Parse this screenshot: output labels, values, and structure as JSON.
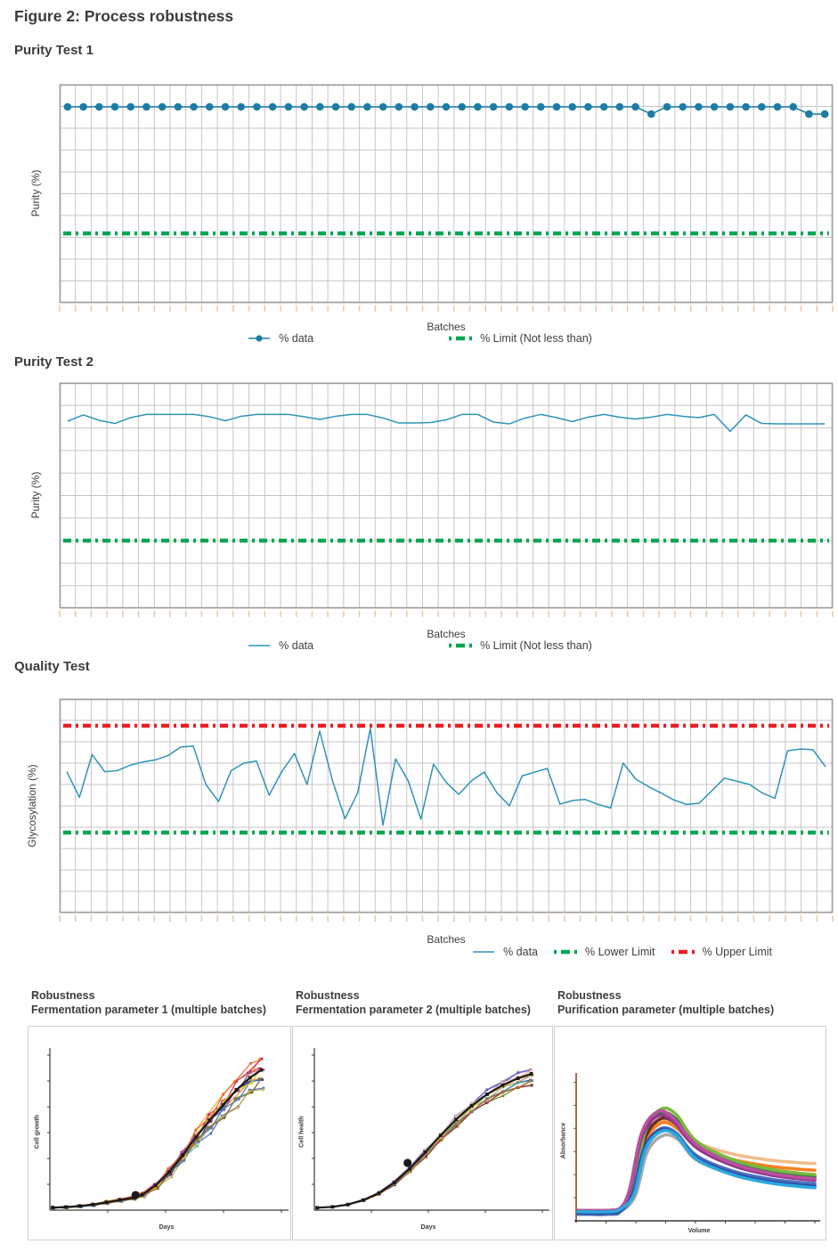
{
  "figure_title": "Figure 2: Process robustness",
  "palette": {
    "data_dot_teal": "#1b7da4",
    "data_line_teal": "#2e93b9",
    "limit_green": "#00a651",
    "limit_red": "#ec1c24",
    "grid_gray": "#c6c6c6",
    "plot_border_gray": "#9a9a9a",
    "axis_tick_peach": "#e9c9a6",
    "heading_gray": "#3c3c3c",
    "panel_border_gray": "#cfcfcf",
    "panel_axis_dark": "#3a3a3a",
    "chrom_axis_brown": "#8c4a1f"
  },
  "chart_data": [
    {
      "id": "purity-test-1",
      "type": "line",
      "title": "Purity Test 1",
      "ylabel": "Purity (%)",
      "xlabel": "Batches",
      "axis_numbers_shown": false,
      "grid": {
        "cols": 49,
        "rows": 10,
        "grid_on": true
      },
      "marker": true,
      "data_color": "#1b7da4",
      "values_rel": [
        0.898,
        0.898,
        0.898,
        0.898,
        0.898,
        0.898,
        0.898,
        0.898,
        0.898,
        0.898,
        0.898,
        0.898,
        0.898,
        0.898,
        0.898,
        0.898,
        0.898,
        0.898,
        0.898,
        0.898,
        0.898,
        0.898,
        0.898,
        0.898,
        0.898,
        0.898,
        0.898,
        0.898,
        0.898,
        0.898,
        0.898,
        0.898,
        0.898,
        0.898,
        0.898,
        0.898,
        0.898,
        0.865,
        0.898,
        0.898,
        0.898,
        0.898,
        0.898,
        0.898,
        0.898,
        0.898,
        0.898,
        0.865,
        0.865
      ],
      "limits": [
        {
          "label": "% Limit (Not less than)",
          "value_rel": 0.318,
          "color": "#00a651"
        }
      ],
      "legend": [
        {
          "label": "% data",
          "marker": "dot-line",
          "color": "#1b7da4"
        },
        {
          "label": "% Limit (Not less than)",
          "marker": "dash",
          "color": "#00a651"
        }
      ],
      "note": "y values are relative plot-height fractions; no numeric tick labels are shown in the figure"
    },
    {
      "id": "purity-test-2",
      "type": "line",
      "title": "Purity Test 2",
      "ylabel": "Purity (%)",
      "xlabel": "Batches",
      "axis_numbers_shown": false,
      "grid": {
        "cols": 49,
        "rows": 10,
        "grid_on": true
      },
      "marker": false,
      "data_color": "#2e93b9",
      "values_rel": [
        0.83,
        0.858,
        0.834,
        0.82,
        0.846,
        0.86,
        0.86,
        0.86,
        0.86,
        0.85,
        0.832,
        0.852,
        0.86,
        0.86,
        0.86,
        0.85,
        0.838,
        0.852,
        0.86,
        0.86,
        0.844,
        0.822,
        0.822,
        0.824,
        0.836,
        0.86,
        0.86,
        0.826,
        0.818,
        0.844,
        0.86,
        0.846,
        0.828,
        0.848,
        0.86,
        0.848,
        0.84,
        0.848,
        0.86,
        0.852,
        0.846,
        0.86,
        0.785,
        0.858,
        0.82,
        0.818,
        0.818,
        0.818,
        0.818
      ],
      "limits": [
        {
          "label": "% Limit (Not less than)",
          "value_rel": 0.3,
          "color": "#00a651"
        }
      ],
      "legend": [
        {
          "label": "% data",
          "marker": "line",
          "color": "#2e93b9"
        },
        {
          "label": "% Limit (Not less than)",
          "marker": "dash",
          "color": "#00a651"
        }
      ]
    },
    {
      "id": "quality-test",
      "type": "line",
      "title": "Quality Test",
      "ylabel": "Glycosylation (%)",
      "xlabel": "Batches",
      "axis_numbers_shown": false,
      "grid": {
        "cols": 49,
        "rows": 10,
        "grid_on": true
      },
      "marker": false,
      "data_color": "#2e93b9",
      "values_rel": [
        0.66,
        0.54,
        0.74,
        0.66,
        0.665,
        0.69,
        0.705,
        0.715,
        0.735,
        0.775,
        0.78,
        0.6,
        0.52,
        0.665,
        0.7,
        0.71,
        0.55,
        0.66,
        0.745,
        0.6,
        0.85,
        0.62,
        0.44,
        0.56,
        0.862,
        0.41,
        0.72,
        0.617,
        0.438,
        0.695,
        0.61,
        0.554,
        0.617,
        0.658,
        0.563,
        0.5,
        0.64,
        0.658,
        0.675,
        0.508,
        0.525,
        0.53,
        0.507,
        0.49,
        0.7,
        0.625,
        0.59,
        0.56,
        0.528,
        0.507,
        0.512,
        0.57,
        0.63,
        0.615,
        0.6,
        0.56,
        0.535,
        0.758,
        0.766,
        0.763,
        0.683
      ],
      "limits": [
        {
          "label": "% Upper Limit",
          "value_rel": 0.875,
          "color": "#ec1c24"
        },
        {
          "label": "% Lower Limit",
          "value_rel": 0.375,
          "color": "#00a651"
        }
      ],
      "legend": [
        {
          "label": "% data",
          "marker": "line",
          "color": "#2e93b9"
        },
        {
          "label": "% Lower Limit",
          "marker": "dash",
          "color": "#00a651"
        },
        {
          "label": "% Upper Limit",
          "marker": "dash",
          "color": "#ec1c24"
        }
      ]
    },
    {
      "id": "fermentation-parameter-1",
      "type": "line",
      "title_line1": "Robustness",
      "title_line2": "Fermentation parameter 1 (multiple batches)",
      "ylabel": "Cell growth",
      "xlabel": "Days",
      "axis_numbers_shown": false,
      "curve_shape": "exponential-growth",
      "series_colors": [
        "#4f6bc4",
        "#ec2027",
        "#f58220",
        "#e9b021",
        "#7e57a5",
        "#74c694",
        "#d91f5e",
        "#2b3990",
        "#c7b04a",
        "#a05fa5",
        "#3a7dc9",
        "#e86a2a",
        "#f2d21f",
        "#8c6239",
        "#1a1a1a"
      ],
      "highlight_color": "#1a1a1a",
      "base_curve": [
        [
          0,
          0.005
        ],
        [
          0.06,
          0.008
        ],
        [
          0.12,
          0.015
        ],
        [
          0.18,
          0.025
        ],
        [
          0.24,
          0.04
        ],
        [
          0.3,
          0.055
        ],
        [
          0.36,
          0.07
        ],
        [
          0.4,
          0.09
        ],
        [
          0.46,
          0.15
        ],
        [
          0.52,
          0.24
        ],
        [
          0.58,
          0.35
        ],
        [
          0.64,
          0.47
        ],
        [
          0.7,
          0.58
        ],
        [
          0.76,
          0.68
        ],
        [
          0.82,
          0.78
        ],
        [
          0.88,
          0.86
        ],
        [
          0.93,
          0.91
        ]
      ],
      "cluster_marker": {
        "x": 0.37,
        "y": 0.085,
        "color": "#1a1a1a"
      },
      "spread": [
        0.86,
        1.04
      ],
      "jitter_x": 0.01,
      "jitter_y": 0.03
    },
    {
      "id": "fermentation-parameter-2",
      "type": "line",
      "title_line1": "Robustness",
      "title_line2": "Fermentation parameter 2 (multiple batches)",
      "ylabel": "Cell health",
      "xlabel": "Days",
      "axis_numbers_shown": false,
      "curve_shape": "sigmoid",
      "series_colors": [
        "#6b8e23",
        "#9acd32",
        "#2e4fa3",
        "#7b9acd",
        "#f58220",
        "#c05da0",
        "#e78ab5",
        "#c2a57a",
        "#8b3a3a",
        "#55707d",
        "#3aa6a0",
        "#6a5acd",
        "#c9cc58",
        "#b56a2f",
        "#f6c9a0",
        "#1a1a1a"
      ],
      "highlight_color": "#1a1a1a",
      "base_curve": [
        [
          0,
          0.004
        ],
        [
          0.07,
          0.01
        ],
        [
          0.14,
          0.025
        ],
        [
          0.21,
          0.055
        ],
        [
          0.28,
          0.1
        ],
        [
          0.35,
          0.17
        ],
        [
          0.42,
          0.26
        ],
        [
          0.49,
          0.37
        ],
        [
          0.56,
          0.48
        ],
        [
          0.63,
          0.585
        ],
        [
          0.7,
          0.675
        ],
        [
          0.77,
          0.75
        ],
        [
          0.84,
          0.81
        ],
        [
          0.91,
          0.855
        ],
        [
          0.97,
          0.885
        ]
      ],
      "cluster_marker": {
        "x": 0.41,
        "y": 0.29,
        "color": "#1a1a1a"
      },
      "spread": [
        0.9,
        1.0
      ],
      "jitter_x": 0.004,
      "jitter_y": 0.012
    },
    {
      "id": "purification-parameter",
      "type": "line",
      "title_line1": "Robustness",
      "title_line2": "Purification parameter (multiple batches)",
      "ylabel": "Absorbance",
      "xlabel": "Volume",
      "axis_numbers_shown": false,
      "curve_shape": "chromatogram-peak",
      "y_axis_color": "#8c4a1f",
      "series": [
        {
          "color": "#a8a8a8",
          "peak": 0.6,
          "tail": 0.22,
          "dx": 0.012
        },
        {
          "color": "#f0bd8a",
          "peak": 0.7,
          "tail": 0.38,
          "dx": 0.006
        },
        {
          "color": "#f58220",
          "peak": 0.69,
          "tail": 0.33,
          "dx": 0.004
        },
        {
          "color": "#6d2b27",
          "peak": 0.72,
          "tail": 0.28,
          "dx": 0.002
        },
        {
          "color": "#1f7a3d",
          "peak": 0.76,
          "tail": 0.27,
          "dx": 0.0
        },
        {
          "color": "#79b93f",
          "peak": 0.79,
          "tail": 0.29,
          "dx": 0.004
        },
        {
          "color": "#93378c",
          "peak": 0.74,
          "tail": 0.25,
          "dx": -0.01
        },
        {
          "color": "#b9519e",
          "peak": 0.77,
          "tail": 0.26,
          "dx": -0.012
        },
        {
          "color": "#4a6fc0",
          "peak": 0.65,
          "tail": 0.23,
          "dx": 0.004
        },
        {
          "color": "#2e4fa3",
          "peak": 0.64,
          "tail": 0.21,
          "dx": 0.0
        },
        {
          "color": "#2aa8e0",
          "peak": 0.63,
          "tail": 0.2,
          "dx": 0.006
        }
      ]
    }
  ]
}
